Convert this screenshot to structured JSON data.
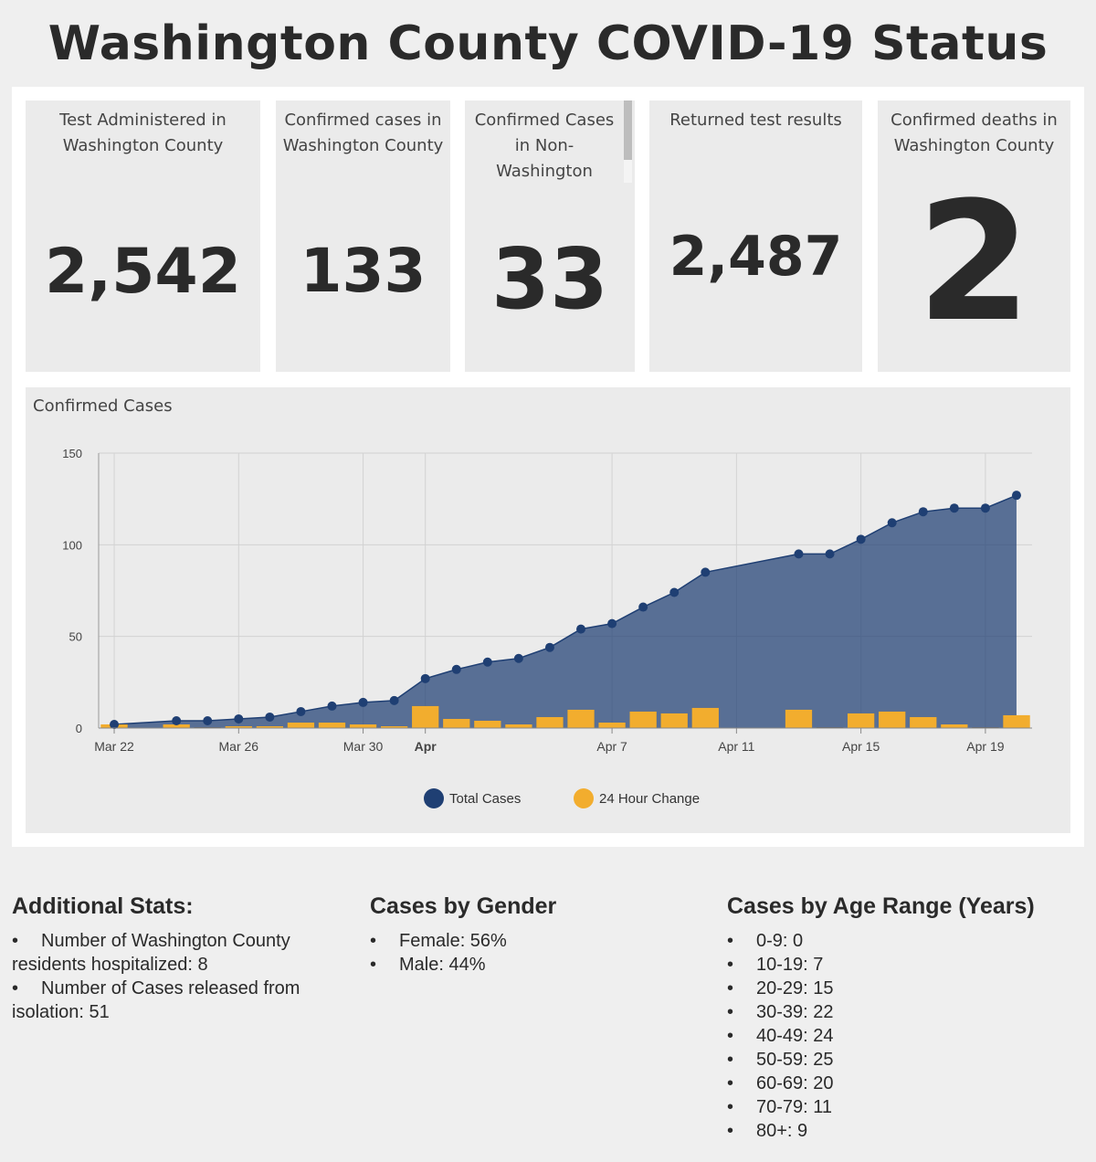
{
  "page_title": "Washington County COVID-19 Status",
  "cards": [
    {
      "label": "Test Administered in Washington County",
      "value": "2,542"
    },
    {
      "label": "Confirmed cases in Washington County",
      "value": "133"
    },
    {
      "label": "Confirmed Cases in Non-Washington",
      "value": "33"
    },
    {
      "label": "Returned test results",
      "value": "2,487"
    },
    {
      "label": "Confirmed deaths in Washington County",
      "value": "2"
    }
  ],
  "chart_data": {
    "type": "area",
    "title": "Confirmed Cases",
    "ylim": [
      0,
      150
    ],
    "yticks": [
      "0",
      "50",
      "100",
      "150"
    ],
    "xticks": [
      "Mar 22",
      "Mar 26",
      "Mar 30",
      "Apr",
      "Apr 7",
      "Apr 11",
      "Apr 15",
      "Apr 19"
    ],
    "grid": true,
    "legend_position": "bottom",
    "x": [
      "Mar 22",
      "Mar 23",
      "Mar 24",
      "Mar 25",
      "Mar 26",
      "Mar 27",
      "Mar 28",
      "Mar 29",
      "Mar 30",
      "Mar 31",
      "Apr 1",
      "Apr 2",
      "Apr 3",
      "Apr 4",
      "Apr 5",
      "Apr 6",
      "Apr 7",
      "Apr 8",
      "Apr 9",
      "Apr 10",
      "Apr 11",
      "Apr 12",
      "Apr 13",
      "Apr 14",
      "Apr 15",
      "Apr 16",
      "Apr 17",
      "Apr 18",
      "Apr 19",
      "Apr 20"
    ],
    "series": [
      {
        "name": "Total Cases",
        "color": "#1f3f73",
        "values": [
          2,
          null,
          4,
          4,
          5,
          6,
          9,
          12,
          14,
          15,
          27,
          32,
          36,
          38,
          44,
          54,
          57,
          66,
          74,
          85,
          null,
          null,
          95,
          95,
          103,
          112,
          118,
          120,
          120,
          127
        ]
      },
      {
        "name": "24 Hour Change",
        "color": "#f2ad2e",
        "values": [
          2,
          null,
          2,
          0,
          1,
          1,
          3,
          3,
          2,
          1,
          12,
          5,
          4,
          2,
          6,
          10,
          3,
          9,
          8,
          11,
          null,
          null,
          10,
          0,
          8,
          9,
          6,
          2,
          0,
          7
        ]
      }
    ]
  },
  "additional_stats": {
    "heading": "Additional Stats:",
    "items": [
      "Number of Washington County residents hospitalized: 8",
      "Number of Cases released from isolation: 51"
    ]
  },
  "gender": {
    "heading": "Cases by Gender",
    "items": [
      "Female: 56%",
      "Male: 44%"
    ]
  },
  "age": {
    "heading": "Cases by Age Range (Years)",
    "items": [
      "0-9: 0",
      "10-19: 7",
      "20-29: 15",
      "30-39: 22",
      "40-49: 24",
      "50-59: 25",
      "60-69: 20",
      "70-79: 11",
      "80+: 9"
    ]
  }
}
